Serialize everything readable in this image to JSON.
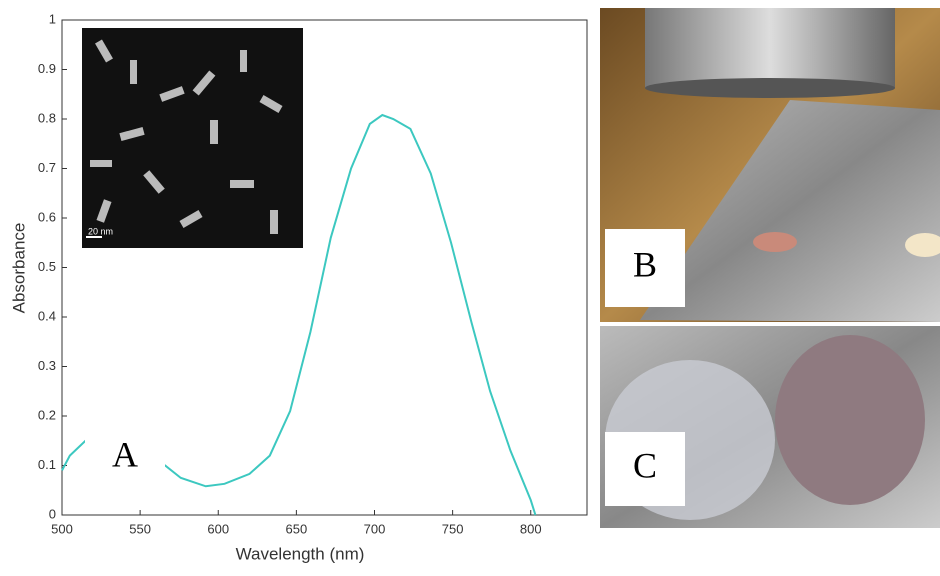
{
  "chart_data": {
    "type": "line",
    "xlabel": "Wavelength (nm)",
    "ylabel": "Absorbance",
    "x": [
      500,
      505,
      515,
      525,
      540,
      555,
      566,
      576,
      592,
      604,
      620,
      633,
      646,
      659,
      672,
      685,
      697,
      705,
      712,
      723,
      736,
      749,
      762,
      774,
      787,
      800,
      803
    ],
    "series": [
      {
        "color": "#3cc8c0",
        "values": [
          0.09,
          0.12,
          0.15,
          0.16,
          0.14,
          0.12,
          0.1,
          0.075,
          0.058,
          0.063,
          0.083,
          0.12,
          0.21,
          0.37,
          0.56,
          0.7,
          0.79,
          0.808,
          0.8,
          0.78,
          0.69,
          0.55,
          0.39,
          0.25,
          0.13,
          0.03,
          0
        ]
      }
    ],
    "xlim": [
      500,
      836
    ],
    "xticks": [
      500,
      550,
      600,
      650,
      700,
      750,
      800
    ],
    "ylim": [
      0,
      1
    ],
    "yticks": [
      0,
      0.1,
      0.2,
      0.3,
      0.4,
      0.5,
      0.6,
      0.7,
      0.8,
      0.9,
      1
    ]
  },
  "figure": {
    "panel_a": "A",
    "panel_b": "B",
    "panel_c": "C",
    "inset_scale": "20 nm"
  }
}
